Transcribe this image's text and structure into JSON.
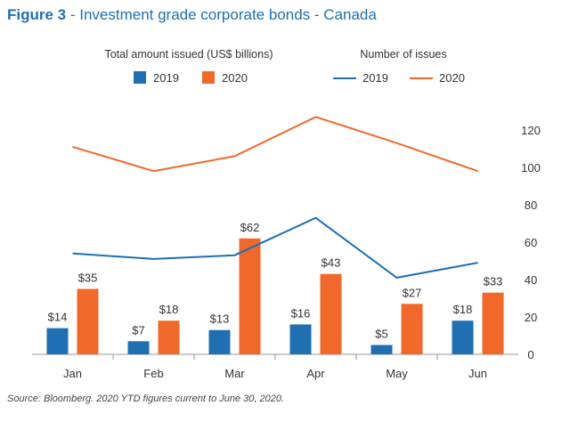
{
  "figure": {
    "label": "Figure 3",
    "separator": " - ",
    "title": "Investment grade corporate bonds - Canada"
  },
  "source": "Source: Bloomberg. 2020 YTD figures current to June 30, 2020.",
  "colors": {
    "title": "#1f6fb2",
    "series_2019": "#1f6fb2",
    "series_2020": "#f0692b",
    "axis": "#999999",
    "text": "#333333"
  },
  "chart_data": {
    "type": "bar+line",
    "title": "Investment grade corporate bonds - Canada",
    "categories": [
      "Jan",
      "Feb",
      "Mar",
      "Apr",
      "May",
      "Jun"
    ],
    "bar_legend_title": "Total amount issued (US$ billions)",
    "line_legend_title": "Number of issues",
    "bar_series": [
      {
        "name": "2019",
        "values": [
          14,
          7,
          13,
          16,
          5,
          18
        ],
        "labels": [
          "$14",
          "$7",
          "$13",
          "$16",
          "$5",
          "$18"
        ]
      },
      {
        "name": "2020",
        "values": [
          35,
          18,
          62,
          43,
          27,
          33
        ],
        "labels": [
          "$35",
          "$18",
          "$62",
          "$43",
          "$27",
          "$33"
        ]
      }
    ],
    "line_series": [
      {
        "name": "2019",
        "values": [
          54,
          51,
          53,
          73,
          41,
          49
        ]
      },
      {
        "name": "2020",
        "values": [
          111,
          98,
          106,
          127,
          113,
          98
        ]
      }
    ],
    "bar_ylim": [
      0,
      70
    ],
    "right_axis": {
      "ylim": [
        0,
        130
      ],
      "ticks": [
        0,
        20,
        40,
        60,
        80,
        100,
        120
      ]
    },
    "legend_position": "top-center"
  }
}
